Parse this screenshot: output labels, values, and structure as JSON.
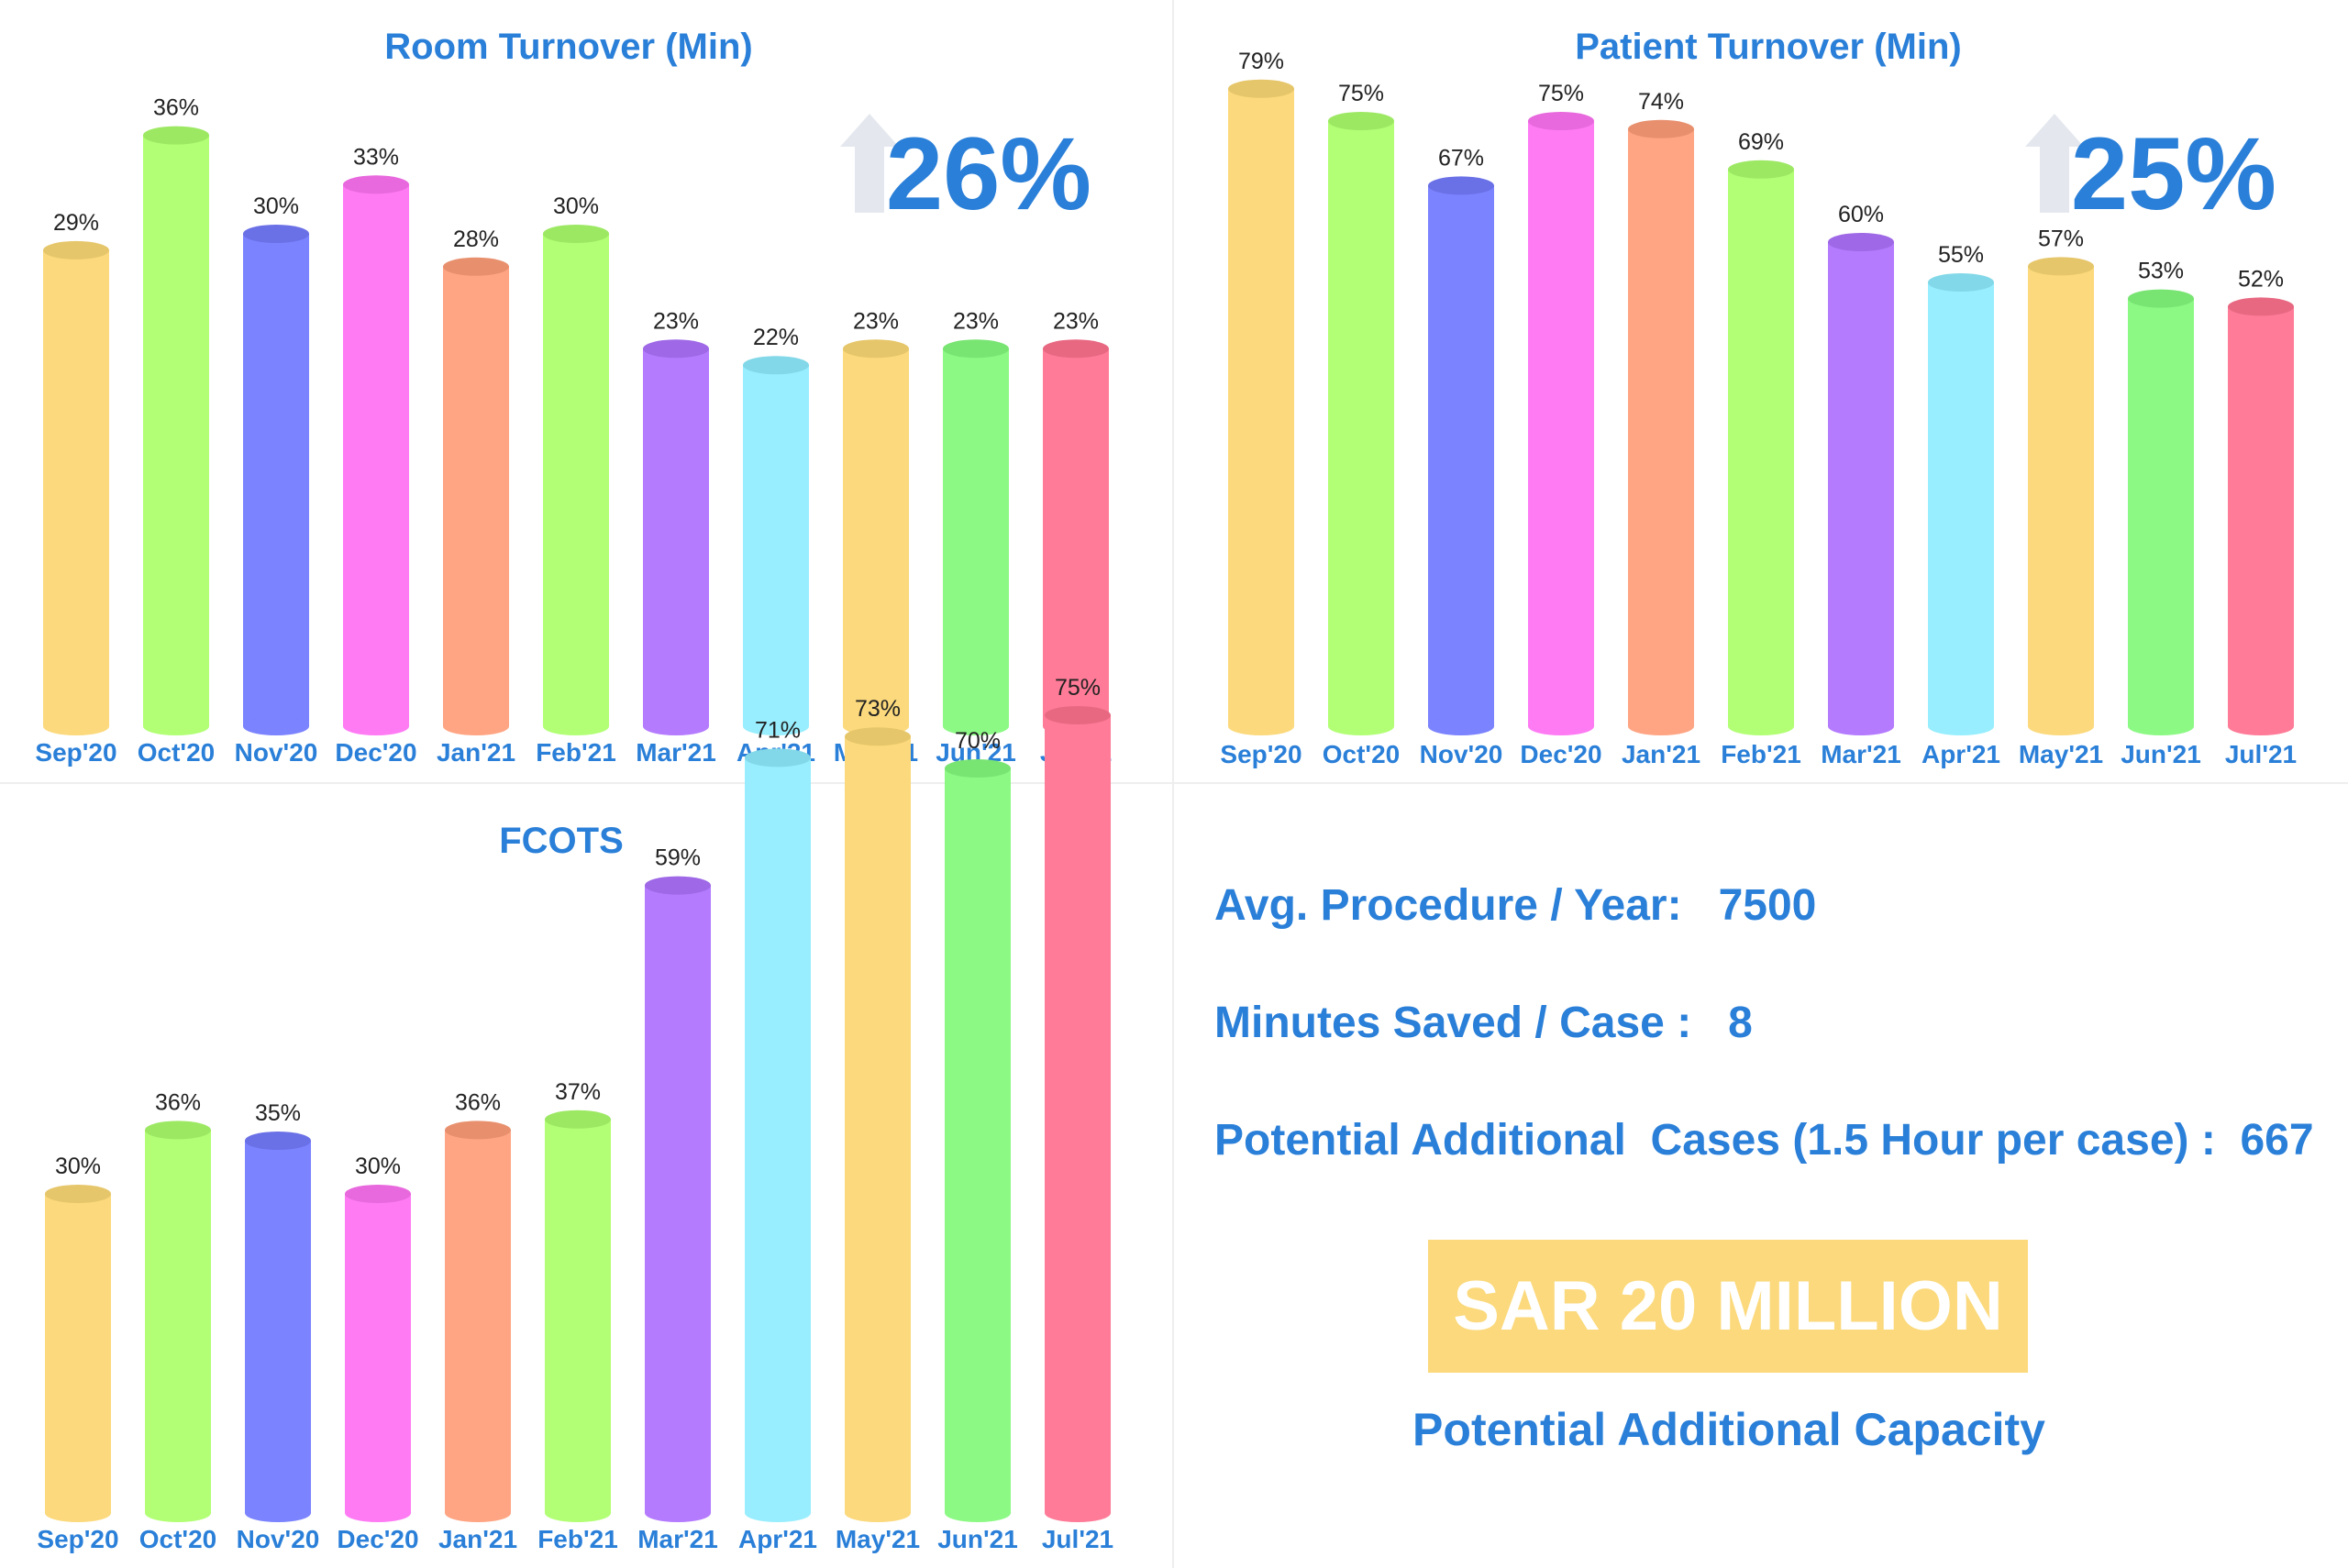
{
  "colors": {
    "accent": "#2a7fd8",
    "bars": [
      "#fbd97c",
      "#b2ff75",
      "#7b83ff",
      "#ff7bf4",
      "#ffa584",
      "#b2ff75",
      "#b47bff",
      "#98eefe",
      "#fbd97c",
      "#8df985",
      "#ff7b97"
    ],
    "bar_tops": [
      "#e6c66a",
      "#9ce863",
      "#6a70e6",
      "#e868dd",
      "#e8906e",
      "#9ce863",
      "#9e68e6",
      "#82d8e8",
      "#e6c66a",
      "#78e472",
      "#e86882"
    ]
  },
  "chart_data": [
    {
      "type": "bar",
      "title": "Room Turnover (Min)",
      "categories": [
        "Sep'20",
        "Oct'20",
        "Nov'20",
        "Dec'20",
        "Jan'21",
        "Feb'21",
        "Mar'21",
        "Apr'21",
        "May'21",
        "Jun'21",
        "Jul'21"
      ],
      "values": [
        29,
        36,
        30,
        33,
        28,
        30,
        23,
        22,
        23,
        23,
        23
      ],
      "value_labels": [
        "29%",
        "36%",
        "30%",
        "33%",
        "28%",
        "30%",
        "23%",
        "22%",
        "23%",
        "23%",
        "23%"
      ],
      "ylim": [
        0,
        40
      ],
      "improvement": "26%",
      "improvement_icon": "up-arrow-icon",
      "xlabel": "",
      "ylabel": ""
    },
    {
      "type": "bar",
      "title": "Patient Turnover (Min)",
      "categories": [
        "Sep'20",
        "Oct'20",
        "Nov'20",
        "Dec'20",
        "Jan'21",
        "Feb'21",
        "Mar'21",
        "Apr'21",
        "May'21",
        "Jun'21",
        "Jul'21"
      ],
      "values": [
        79,
        75,
        67,
        75,
        74,
        69,
        60,
        55,
        57,
        53,
        52
      ],
      "value_labels": [
        "79%",
        "75%",
        "67%",
        "75%",
        "74%",
        "69%",
        "60%",
        "55%",
        "57%",
        "53%",
        "52%"
      ],
      "ylim": [
        0,
        80
      ],
      "improvement": "25%",
      "improvement_icon": "up-arrow-icon",
      "xlabel": "",
      "ylabel": ""
    },
    {
      "type": "bar",
      "title": "FCOTS",
      "categories": [
        "Sep'20",
        "Oct'20",
        "Nov'20",
        "Dec'20",
        "Jan'21",
        "Feb'21",
        "Mar'21",
        "Apr'21",
        "May'21",
        "Jun'21",
        "Jul'21"
      ],
      "values": [
        30,
        36,
        35,
        30,
        36,
        37,
        59,
        71,
        73,
        70,
        75
      ],
      "value_labels": [
        "30%",
        "36%",
        "35%",
        "30%",
        "36%",
        "37%",
        "59%",
        "71%",
        "73%",
        "70%",
        "75%"
      ],
      "ylim": [
        0,
        80
      ],
      "xlabel": "",
      "ylabel": ""
    }
  ],
  "stats": {
    "avg_procedure": "Avg. Procedure / Year:   7500",
    "minutes_saved": "Minutes Saved / Case :   8",
    "potential_cases": "Potential Additional  Cases (1.5 Hour per case) :  667"
  },
  "banner": {
    "label": "SAR 20 MILLION"
  },
  "caption": "Potential Additional Capacity"
}
